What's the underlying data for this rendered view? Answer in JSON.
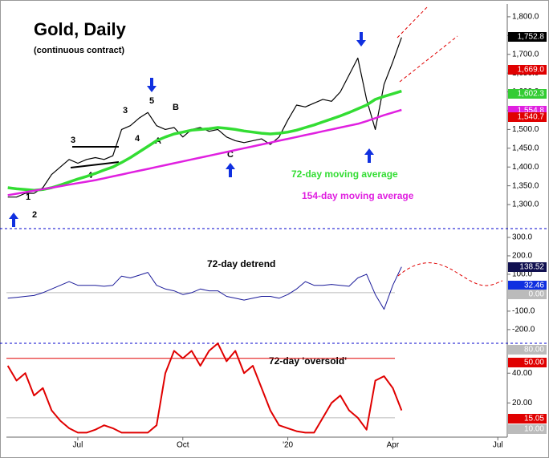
{
  "chart_data": [
    {
      "type": "line",
      "title": "Gold, Daily",
      "subtitle": "(continuous contract)",
      "annotations": [
        "1",
        "2",
        "3",
        "4",
        "3",
        "5",
        "4",
        "A",
        "B",
        "C"
      ],
      "x": [
        -2,
        -1.75,
        -1.5,
        -1.25,
        -1,
        -0.75,
        -0.5,
        -0.25,
        0,
        0.25,
        0.5,
        0.75,
        1,
        1.25,
        1.5,
        1.75,
        2,
        2.25,
        2.5,
        2.75,
        3,
        3.25,
        3.5,
        3.75,
        4,
        4.25,
        4.5,
        4.75,
        5,
        5.25,
        5.5,
        5.75,
        6,
        6.25,
        6.5,
        6.75,
        7,
        7.25,
        7.5,
        7.75,
        8,
        8.25,
        8.5,
        8.75,
        9,
        9.25
      ],
      "xlim": [
        -2.04,
        12.27
      ],
      "ylim": [
        1236,
        1834
      ],
      "yticks": [
        {
          "value": 1300,
          "label": "1,300.0"
        },
        {
          "value": 1350,
          "label": "1,350.0"
        },
        {
          "value": 1400,
          "label": "1,400.0"
        },
        {
          "value": 1450,
          "label": "1,450.0"
        },
        {
          "value": 1500,
          "label": "1,500.0"
        },
        {
          "value": 1550,
          "label": "1,550.0"
        },
        {
          "value": 1600,
          "label": "1,600.0"
        },
        {
          "value": 1650,
          "label": "1,650.0"
        },
        {
          "value": 1700,
          "label": "1,700.0"
        },
        {
          "value": 1750,
          "label": "1,750.0"
        },
        {
          "value": 1800,
          "label": "1,800.0"
        }
      ],
      "series": [
        {
          "color": "#000000",
          "values": [
            1320,
            1320,
            1330,
            1330,
            1345,
            1380,
            1400,
            1420,
            1410,
            1420,
            1425,
            1420,
            1430,
            1500,
            1510,
            1530,
            1545,
            1510,
            1500,
            1505,
            1480,
            1500,
            1505,
            1495,
            1500,
            1480,
            1470,
            1465,
            1470,
            1475,
            1460,
            1480,
            1525,
            1565,
            1560,
            1570,
            1580,
            1575,
            1600,
            1645,
            1690,
            1580,
            1500,
            1620,
            1680,
            1745
          ]
        },
        {
          "name": "72-day moving average",
          "color": "#33dd33",
          "values": [
            1345,
            1342,
            1340,
            1338,
            1340,
            1345,
            1352,
            1360,
            1368,
            1375,
            1383,
            1392,
            1400,
            1412,
            1425,
            1440,
            1455,
            1470,
            1480,
            1488,
            1493,
            1498,
            1500,
            1502,
            1505,
            1503,
            1500,
            1496,
            1493,
            1490,
            1488,
            1490,
            1493,
            1498,
            1505,
            1512,
            1520,
            1528,
            1536,
            1545,
            1555,
            1565,
            1580,
            1588,
            1595,
            1602
          ]
        },
        {
          "name": "154-day moving average",
          "color": "#e020e0",
          "values": [
            1325,
            1329,
            1333,
            1337,
            1341,
            1345,
            1349,
            1353,
            1357,
            1361,
            1365,
            1370,
            1375,
            1380,
            1385,
            1390,
            1395,
            1400,
            1405,
            1410,
            1415,
            1420,
            1425,
            1430,
            1435,
            1440,
            1445,
            1450,
            1455,
            1460,
            1465,
            1470,
            1475,
            1480,
            1485,
            1490,
            1495,
            1500,
            1505,
            1510,
            1515,
            1522,
            1530,
            1538,
            1545,
            1552
          ]
        }
      ],
      "tags": [
        {
          "label": "1,752.8",
          "color": "#000000"
        },
        {
          "label": "1,669.0",
          "color": "#e00000"
        },
        {
          "label": "1,602.3",
          "color": "#33cc33"
        },
        {
          "label": "1,554.8",
          "color": "#e020e0"
        },
        {
          "label": "1,540.7",
          "color": "#e00000"
        }
      ]
    },
    {
      "type": "line",
      "ylim": [
        -270,
        339
      ],
      "yticks": [
        {
          "value": 300,
          "label": "300.0"
        },
        {
          "value": 200,
          "label": "200.0"
        },
        {
          "value": 100,
          "label": "100.0"
        },
        {
          "value": -100,
          "label": "-100.0"
        },
        {
          "value": -200,
          "label": "-200.0"
        }
      ],
      "hlines": [
        {
          "value": 0,
          "color": "#bbbbbb"
        }
      ],
      "series": [
        {
          "name": "72-day detrend",
          "color": "#1a1a99",
          "values": [
            -30,
            -25,
            -20,
            -15,
            0,
            20,
            40,
            60,
            40,
            40,
            40,
            35,
            40,
            90,
            80,
            95,
            110,
            40,
            20,
            10,
            -10,
            0,
            20,
            10,
            10,
            -20,
            -30,
            -40,
            -30,
            -20,
            -20,
            -30,
            -10,
            20,
            60,
            40,
            40,
            45,
            40,
            35,
            80,
            100,
            -10,
            -90,
            40,
            140
          ]
        }
      ],
      "tags": [
        {
          "label": "138.52",
          "color": "#101050"
        },
        {
          "label": "32.46",
          "color": "#1030e0"
        },
        {
          "label": "0.00",
          "color": "#bbbbbb"
        }
      ]
    },
    {
      "type": "line",
      "ylim": [
        -3,
        59
      ],
      "yticks": [
        {
          "value": 40,
          "label": "40.00"
        },
        {
          "value": 20,
          "label": "20.00"
        }
      ],
      "hlines": [
        {
          "value": 50,
          "color": "#e00000"
        },
        {
          "value": 10,
          "color": "#bbbbbb"
        }
      ],
      "xticks": [
        {
          "value": 0,
          "label": "Jul"
        },
        {
          "value": 3,
          "label": "Oct"
        },
        {
          "value": 6,
          "label": "'20"
        },
        {
          "value": 9,
          "label": "Apr"
        },
        {
          "value": 12,
          "label": "Jul"
        }
      ],
      "series": [
        {
          "name": "72-day 'oversold'",
          "color": "#e00000",
          "values": [
            45,
            35,
            40,
            25,
            30,
            15,
            8,
            3,
            0,
            0,
            2,
            5,
            3,
            0,
            0,
            0,
            0,
            5,
            40,
            55,
            50,
            55,
            45,
            55,
            60,
            48,
            55,
            40,
            45,
            30,
            15,
            5,
            3,
            1,
            0,
            0,
            10,
            20,
            25,
            15,
            10,
            2,
            35,
            38,
            30,
            15
          ]
        }
      ],
      "tags": [
        {
          "label": "80.00",
          "color": "#bbbbbb"
        },
        {
          "label": "50.00",
          "color": "#e00000"
        },
        {
          "label": "15.05",
          "color": "#e00000"
        },
        {
          "label": "10.00",
          "color": "#bbbbbb"
        }
      ]
    }
  ]
}
